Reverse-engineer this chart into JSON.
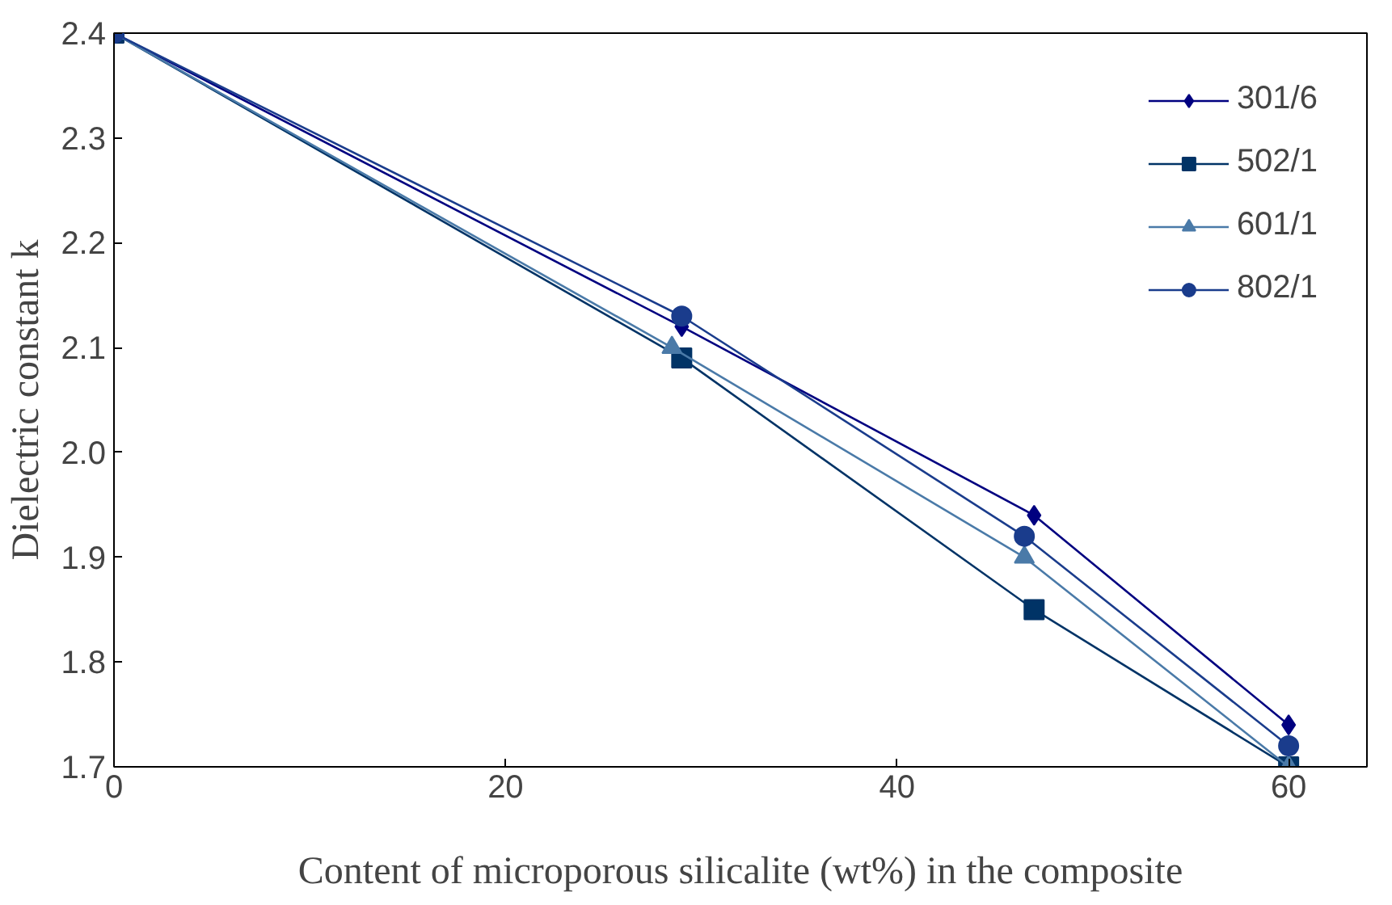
{
  "chart_data": {
    "type": "line",
    "xlabel": "Content of microporous silicalite (wt%) in the composite",
    "ylabel": "Dielectric constant k",
    "xlim": [
      0,
      64
    ],
    "xticks": [
      0,
      20,
      40,
      60
    ],
    "ylim": [
      1.7,
      2.4
    ],
    "yticks": [
      {
        "value": 1.7,
        "label": "1.7"
      },
      {
        "value": 1.8,
        "label": "1.8"
      },
      {
        "value": 1.9,
        "label": "1.9"
      },
      {
        "value": 2.0,
        "label": "2.0"
      },
      {
        "value": 2.1,
        "label": "2.1"
      },
      {
        "value": 2.2,
        "label": "2.2"
      },
      {
        "value": 2.3,
        "label": "2.3"
      },
      {
        "value": 2.4,
        "label": "2.4"
      }
    ],
    "grid": false,
    "legend": "top right",
    "series": [
      {
        "name": "301/6",
        "color": "#000080",
        "marker": "diamond",
        "x": [
          0,
          29,
          47,
          60
        ],
        "values": [
          2.4,
          2.12,
          1.94,
          1.74
        ]
      },
      {
        "name": "502/1",
        "color": "#003366",
        "marker": "square",
        "x": [
          0,
          29,
          47,
          60
        ],
        "values": [
          2.4,
          2.09,
          1.85,
          1.7
        ]
      },
      {
        "name": "601/1",
        "color": "#4a7aa8",
        "marker": "triangle",
        "x": [
          0,
          28.5,
          46.5,
          60
        ],
        "values": [
          2.4,
          2.1,
          1.9,
          1.7
        ]
      },
      {
        "name": "802/1",
        "color": "#1a3c8c",
        "marker": "circle",
        "x": [
          0,
          29,
          46.5,
          60
        ],
        "values": [
          2.4,
          2.13,
          1.92,
          1.72
        ]
      }
    ]
  }
}
